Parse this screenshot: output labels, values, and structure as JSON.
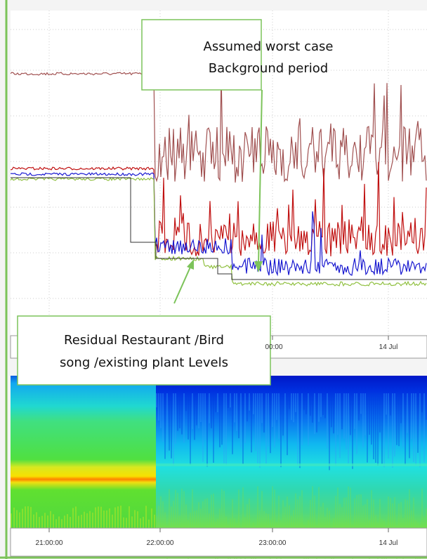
{
  "callouts": [
    {
      "lines": [
        "Assumed worst case",
        "Background period"
      ]
    },
    {
      "lines": [
        "Residual Restaurant /Bird",
        "song /existing plant Levels"
      ]
    }
  ],
  "upper_axis": {
    "labels": [
      "00:00",
      "14 Jul"
    ]
  },
  "lower_axis": {
    "labels": [
      "21:00:00",
      "22:00:00",
      "23:00:00",
      "14 Jul"
    ]
  }
}
